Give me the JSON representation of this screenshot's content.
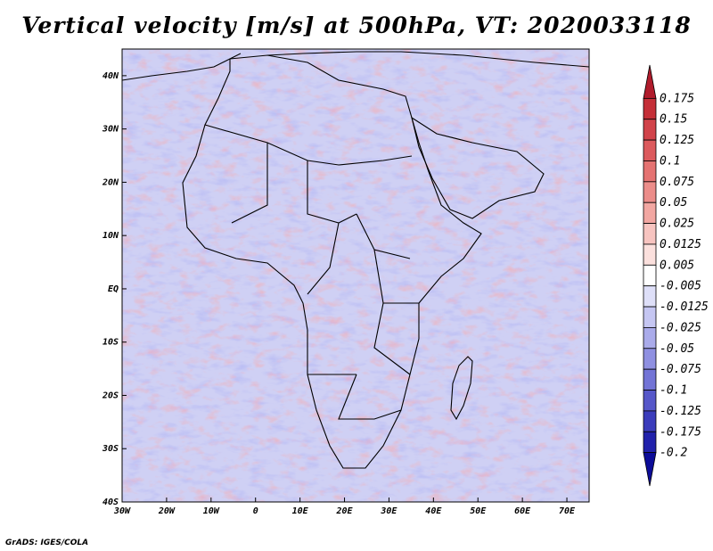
{
  "title": "Vertical velocity [m/s] at 500hPa, VT: 2020033118",
  "credit": "GrADS: IGES/COLA",
  "map": {
    "lat_labels": [
      "40N",
      "30N",
      "20N",
      "10N",
      "EQ",
      "10S",
      "20S",
      "30S",
      "40S"
    ],
    "lon_labels": [
      "30W",
      "20W",
      "10W",
      "0",
      "10E",
      "20E",
      "30E",
      "40E",
      "50E",
      "60E",
      "70E"
    ],
    "lon_range": [
      -30,
      75
    ],
    "lat_range": [
      -40,
      45
    ]
  },
  "colorbar": {
    "levels": [
      "0.175",
      "0.15",
      "0.125",
      "0.1",
      "0.075",
      "0.05",
      "0.025",
      "0.0125",
      "0.005",
      "-0.005",
      "-0.0125",
      "-0.025",
      "-0.05",
      "-0.075",
      "-0.1",
      "-0.125",
      "-0.175",
      "-0.2"
    ],
    "colors": [
      "#b01c2c",
      "#c42f38",
      "#d1434a",
      "#dc5a5d",
      "#e57372",
      "#ec8d8a",
      "#f2a7a2",
      "#f7c4c0",
      "#fbe0dd",
      "#ffffff",
      "#dedff8",
      "#c5c6f2",
      "#aaabea",
      "#8f90e1",
      "#7374d6",
      "#5657c9",
      "#3b3cbb",
      "#2121ab",
      "#0c0c98"
    ]
  }
}
